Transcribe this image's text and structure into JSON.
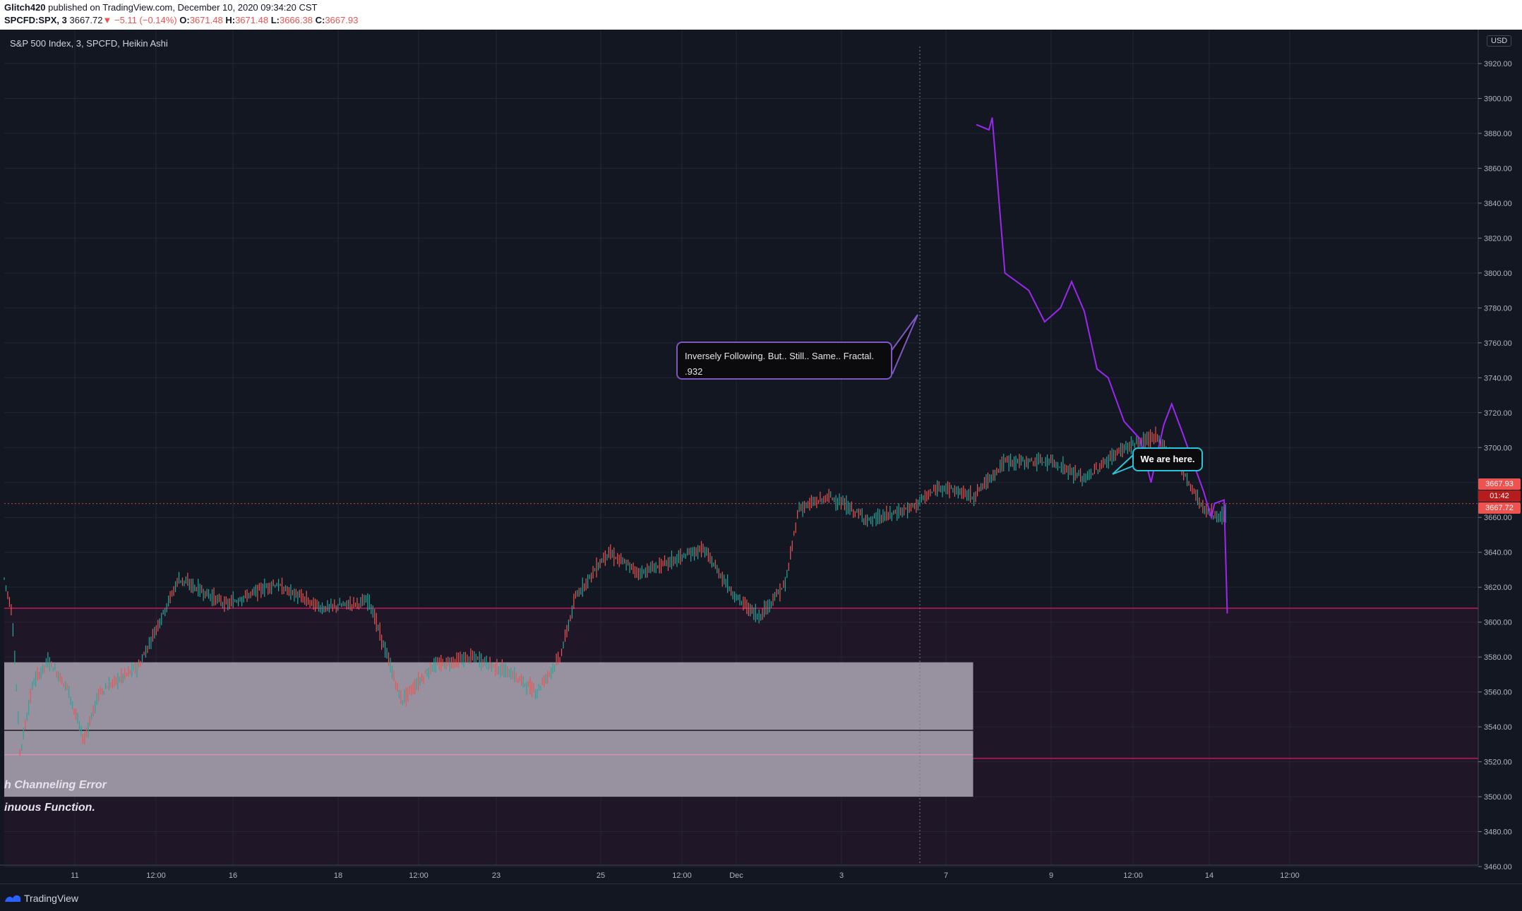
{
  "header": {
    "author": "Glitch420",
    "published_text": "published on TradingView.com, December 10, 2020 09:34:20 CST",
    "symbol": "SPCFD:SPX, 3",
    "last": "3667.72",
    "change": "−5.11 (−0.14%)",
    "open_label": "O:",
    "open": "3671.48",
    "high_label": "H:",
    "high": "3671.48",
    "low_label": "L:",
    "low": "3666.38",
    "close_label": "C:",
    "close": "3667.93"
  },
  "legend": {
    "title": "S&P 500 Index, 3, SPCFD, Heikin Ashi",
    "currency": "USD"
  },
  "annotations": {
    "callout_fractal_line1": "Inversely Following. But.. Still.. Same.. Fractal.",
    "callout_fractal_line2": ".932",
    "callout_here": "We are here.",
    "note_1": "h Channeling Error",
    "note_2": "inuous Function."
  },
  "price_labels": {
    "close_tag": "3667.93",
    "countdown": "01:42",
    "last_tag": "3667.72"
  },
  "footer": {
    "brand": "TradingView"
  },
  "colors": {
    "background": "#131722",
    "up": "#26a69a",
    "down": "#ef5350",
    "projection": "#9c27f0",
    "zone_fill": "#9e98a6",
    "lower_zone": "#1f1728",
    "horizontal_line": "#c2185b",
    "callout_border_1": "#7e57c2",
    "callout_border_2": "#26c6da"
  },
  "chart_data": {
    "type": "candlestick",
    "chart_style": "Heikin Ashi",
    "interval": "3",
    "y_axis": {
      "ylim": [
        3440,
        3930
      ],
      "ticks": [
        3460,
        3480,
        3500,
        3520,
        3540,
        3560,
        3580,
        3600,
        3620,
        3640,
        3660,
        3680,
        3700,
        3720,
        3740,
        3760,
        3780,
        3800,
        3820,
        3840,
        3860,
        3880,
        3900,
        3920
      ]
    },
    "x_axis": {
      "tick_labels": [
        "11",
        "12:00",
        "16",
        "18",
        "12:00",
        "23",
        "25",
        "12:00",
        "Dec",
        "3",
        "7",
        "9",
        "12:00",
        "14",
        "12:00"
      ]
    },
    "price_path": [
      [
        0,
        3625
      ],
      [
        0.05,
        3605
      ],
      [
        0.1,
        3525
      ],
      [
        0.18,
        3565
      ],
      [
        0.28,
        3578
      ],
      [
        0.4,
        3562
      ],
      [
        0.5,
        3532
      ],
      [
        0.6,
        3560
      ],
      [
        0.85,
        3575
      ],
      [
        1.1,
        3625
      ],
      [
        1.4,
        3610
      ],
      [
        1.7,
        3622
      ],
      [
        2.0,
        3608
      ],
      [
        2.3,
        3612
      ],
      [
        2.5,
        3555
      ],
      [
        2.7,
        3575
      ],
      [
        2.95,
        3580
      ],
      [
        3.2,
        3570
      ],
      [
        3.35,
        3560
      ],
      [
        3.5,
        3580
      ],
      [
        3.6,
        3615
      ],
      [
        3.8,
        3640
      ],
      [
        4.0,
        3628
      ],
      [
        4.2,
        3635
      ],
      [
        4.4,
        3642
      ],
      [
        4.6,
        3615
      ],
      [
        4.75,
        3603
      ],
      [
        4.92,
        3622
      ],
      [
        5.0,
        3665
      ],
      [
        5.2,
        3672
      ],
      [
        5.45,
        3658
      ],
      [
        5.7,
        3665
      ],
      [
        5.9,
        3678
      ],
      [
        6.1,
        3672
      ],
      [
        6.3,
        3692
      ],
      [
        6.6,
        3692
      ],
      [
        6.8,
        3682
      ],
      [
        7.05,
        3700
      ],
      [
        7.25,
        3706
      ],
      [
        7.4,
        3690
      ],
      [
        7.55,
        3665
      ],
      [
        7.65,
        3660
      ],
      [
        7.7,
        3662
      ]
    ],
    "projection_path": [
      [
        6.12,
        3885
      ],
      [
        6.2,
        3882
      ],
      [
        6.22,
        3889
      ],
      [
        6.3,
        3800
      ],
      [
        6.45,
        3790
      ],
      [
        6.55,
        3772
      ],
      [
        6.65,
        3780
      ],
      [
        6.72,
        3795
      ],
      [
        6.8,
        3778
      ],
      [
        6.88,
        3745
      ],
      [
        6.95,
        3740
      ],
      [
        7.05,
        3715
      ],
      [
        7.15,
        3705
      ],
      [
        7.22,
        3680
      ],
      [
        7.3,
        3713
      ],
      [
        7.35,
        3725
      ],
      [
        7.42,
        3708
      ],
      [
        7.55,
        3675
      ],
      [
        7.6,
        3660
      ],
      [
        7.62,
        3668
      ],
      [
        7.68,
        3670
      ],
      [
        7.7,
        3605
      ]
    ],
    "horizontal_levels": [
      {
        "price": 3608,
        "color": "#c2185b"
      },
      {
        "price": 3522,
        "color": "#c2185b"
      },
      {
        "price": 3667.93,
        "color": "#ef5350",
        "style": "dotted"
      }
    ],
    "zones": [
      {
        "from": 0,
        "to": 6.1,
        "price_top": 3577,
        "price_bottom": 3500,
        "mid_line": 3538,
        "pink_line": 3524
      },
      {
        "from": 0,
        "to": 9.8,
        "price_top": 3608,
        "price_bottom": 3440
      }
    ],
    "current_price": 3667.72
  }
}
